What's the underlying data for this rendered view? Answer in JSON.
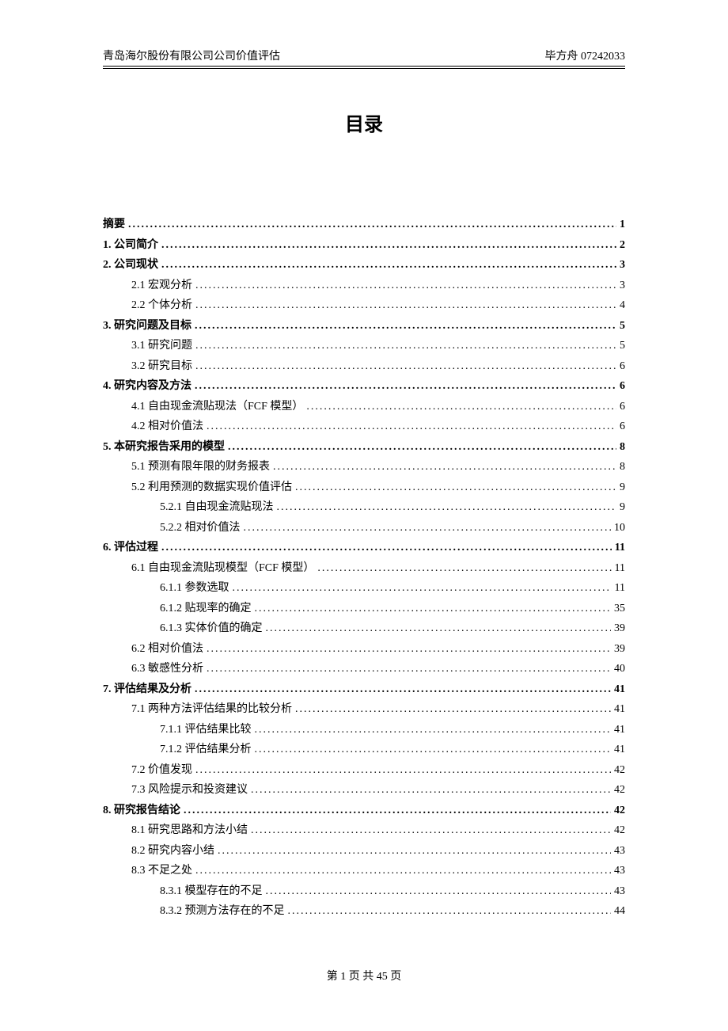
{
  "header": {
    "leftText": "青岛海尔股份有限公司公司价值评估",
    "rightAuthor": "毕方舟",
    "rightId": "07242033"
  },
  "title": "目录",
  "toc": [
    {
      "level": 0,
      "label": "摘要",
      "page": "1"
    },
    {
      "level": 0,
      "label": "1.  公司简介",
      "page": "2"
    },
    {
      "level": 0,
      "label": "2.  公司现状",
      "page": "3"
    },
    {
      "level": 1,
      "label": "2.1 宏观分析",
      "page": "3"
    },
    {
      "level": 1,
      "label": "2.2 个体分析",
      "page": "4"
    },
    {
      "level": 0,
      "label": "3.  研究问题及目标",
      "page": "5"
    },
    {
      "level": 1,
      "label": "3.1 研究问题",
      "page": "5"
    },
    {
      "level": 1,
      "label": "3.2 研究目标",
      "page": "6"
    },
    {
      "level": 0,
      "label": "4.  研究内容及方法",
      "page": "6"
    },
    {
      "level": 1,
      "label": "4.1 自由现金流贴现法（FCF  模型）",
      "page": "6"
    },
    {
      "level": 1,
      "label": "4.2  相对价值法",
      "page": "6"
    },
    {
      "level": 0,
      "label": "5.  本研究报告采用的模型",
      "page": "8"
    },
    {
      "level": 1,
      "label": "5.1 预测有限年限的财务报表",
      "page": "8"
    },
    {
      "level": 1,
      "label": "5.2 利用预测的数据实现价值评估",
      "page": "9"
    },
    {
      "level": 2,
      "label": "5.2.1 自由现金流贴现法",
      "page": "9"
    },
    {
      "level": 2,
      "label": "5.2.2 相对价值法",
      "page": "10"
    },
    {
      "level": 0,
      "label": "6.  评估过程",
      "page": "11"
    },
    {
      "level": 1,
      "label": "6.1  自由现金流贴现模型（FCF  模型）",
      "page": "11"
    },
    {
      "level": 2,
      "label": "6.1.1  参数选取",
      "page": "11"
    },
    {
      "level": 2,
      "label": "6.1.2  贴现率的确定",
      "page": "35"
    },
    {
      "level": 2,
      "label": "6.1.3  实体价值的确定",
      "page": "39"
    },
    {
      "level": 1,
      "label": "6.2  相对价值法",
      "page": "39"
    },
    {
      "level": 1,
      "label": "6.3  敏感性分析",
      "page": "40"
    },
    {
      "level": 0,
      "label": "7.  评估结果及分析",
      "page": "41"
    },
    {
      "level": 1,
      "label": "7.1  两种方法评估结果的比较分析",
      "page": "41"
    },
    {
      "level": 2,
      "label": "7.1.1  评估结果比较",
      "page": "41"
    },
    {
      "level": 2,
      "label": "7.1.2  评估结果分析",
      "page": "41"
    },
    {
      "level": 1,
      "label": "7.2  价值发现",
      "page": "42"
    },
    {
      "level": 1,
      "label": "7.3  风险提示和投资建议",
      "page": "42"
    },
    {
      "level": 0,
      "label": "8.  研究报告结论",
      "page": "42"
    },
    {
      "level": 1,
      "label": "8.1  研究思路和方法小结",
      "page": "42"
    },
    {
      "level": 1,
      "label": "8.2  研究内容小结",
      "page": "43"
    },
    {
      "level": 1,
      "label": "8.3  不足之处",
      "page": "43"
    },
    {
      "level": 2,
      "label": "8.3.1 模型存在的不足",
      "page": "43"
    },
    {
      "level": 2,
      "label": "8.3.2 预测方法存在的不足",
      "page": "44"
    }
  ],
  "footer": {
    "prefix": "第",
    "currentPage": "1",
    "middle": "页 共",
    "totalPages": "45",
    "suffix": "页"
  }
}
